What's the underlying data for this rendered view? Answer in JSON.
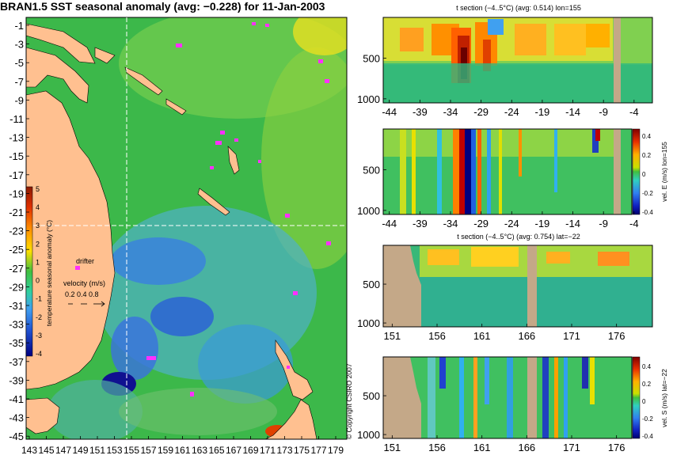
{
  "map": {
    "title": "BRAN1.5 SST seasonal anomaly (avg: −0.228) for 11-Jan-2003",
    "lat_ticks": [
      "-1",
      "-3",
      "-5",
      "-7",
      "-9",
      "-11",
      "-13",
      "-15",
      "-17",
      "-19",
      "-21",
      "-23",
      "-25",
      "-27",
      "-29",
      "-31",
      "-33",
      "-35",
      "-37",
      "-39",
      "-41",
      "-43",
      "-45"
    ],
    "lon_ticks": [
      "143",
      "145",
      "147",
      "149",
      "151",
      "153",
      "155",
      "157",
      "159",
      "161",
      "163",
      "165",
      "167",
      "169",
      "171",
      "173",
      "175",
      "177",
      "179"
    ],
    "colorbar": {
      "label": "temperature seasonal anomaly (°C)",
      "ticks": [
        "5",
        "4",
        "3",
        "2",
        "1",
        "0",
        "-1",
        "-2",
        "-3",
        "-4"
      ]
    },
    "drifter_label": "drifter",
    "velocity_label": "velocity (m/s)",
    "velocity_values": "0.2 0.4 0.8",
    "copyright": "© Copyright CSIRO 2007"
  },
  "panels": {
    "p1": {
      "title": "t section (−4..5°C) (avg: 0.514) lon=155",
      "yticks": [
        "500",
        "1000"
      ],
      "xticks": [
        "-44",
        "-39",
        "-34",
        "-29",
        "-24",
        "-19",
        "-14",
        "-9",
        "-4"
      ]
    },
    "p2": {
      "title": "",
      "yticks": [
        "500",
        "1000"
      ],
      "xticks": [
        "-44",
        "-39",
        "-34",
        "-29",
        "-24",
        "-19",
        "-14",
        "-9",
        "-4"
      ],
      "cbar_label": "vel. E (m/s) lon=155",
      "cbar_ticks": [
        "0.4",
        "0.2",
        "0",
        "-0.2",
        "-0.4"
      ]
    },
    "p3": {
      "title": "t section (−4..5°C) (avg: 0.754) lat=−22",
      "yticks": [
        "500",
        "1000"
      ],
      "xticks": [
        "151",
        "156",
        "161",
        "166",
        "171",
        "176"
      ]
    },
    "p4": {
      "title": "",
      "yticks": [
        "500",
        "1000"
      ],
      "xticks": [
        "151",
        "156",
        "161",
        "166",
        "171",
        "176"
      ],
      "cbar_label": "vel. S (m/s) lat=−22",
      "cbar_ticks": [
        "0.4",
        "0.2",
        "0",
        "-0.2",
        "-0.4"
      ]
    }
  },
  "chart_data": [
    {
      "type": "heatmap",
      "title": "BRAN1.5 SST seasonal anomaly (avg: −0.228) for 11-Jan-2003",
      "xlabel": "",
      "ylabel": "",
      "xlim": [
        143,
        180
      ],
      "ylim": [
        -45,
        0
      ],
      "colorbar_range": [
        -4,
        5
      ]
    },
    {
      "type": "heatmap",
      "title": "t section (−4..5°C) (avg: 0.514) lon=155",
      "xlim": [
        -45,
        0
      ],
      "ylim": [
        1050,
        0
      ],
      "colorbar_range": [
        -4,
        5
      ]
    },
    {
      "type": "heatmap",
      "title": "",
      "xlim": [
        -45,
        0
      ],
      "ylim": [
        1050,
        0
      ],
      "colorbar_label": "vel. E (m/s) lon=155",
      "colorbar_range": [
        -0.4,
        0.4
      ]
    },
    {
      "type": "heatmap",
      "title": "t section (−4..5°C) (avg: 0.754) lat=−22",
      "xlim": [
        150,
        180
      ],
      "ylim": [
        1050,
        0
      ],
      "colorbar_range": [
        -4,
        5
      ]
    },
    {
      "type": "heatmap",
      "title": "",
      "xlim": [
        150,
        180
      ],
      "ylim": [
        1050,
        0
      ],
      "colorbar_label": "vel. S (m/s) lat=−22",
      "colorbar_range": [
        -0.4,
        0.4
      ]
    }
  ]
}
